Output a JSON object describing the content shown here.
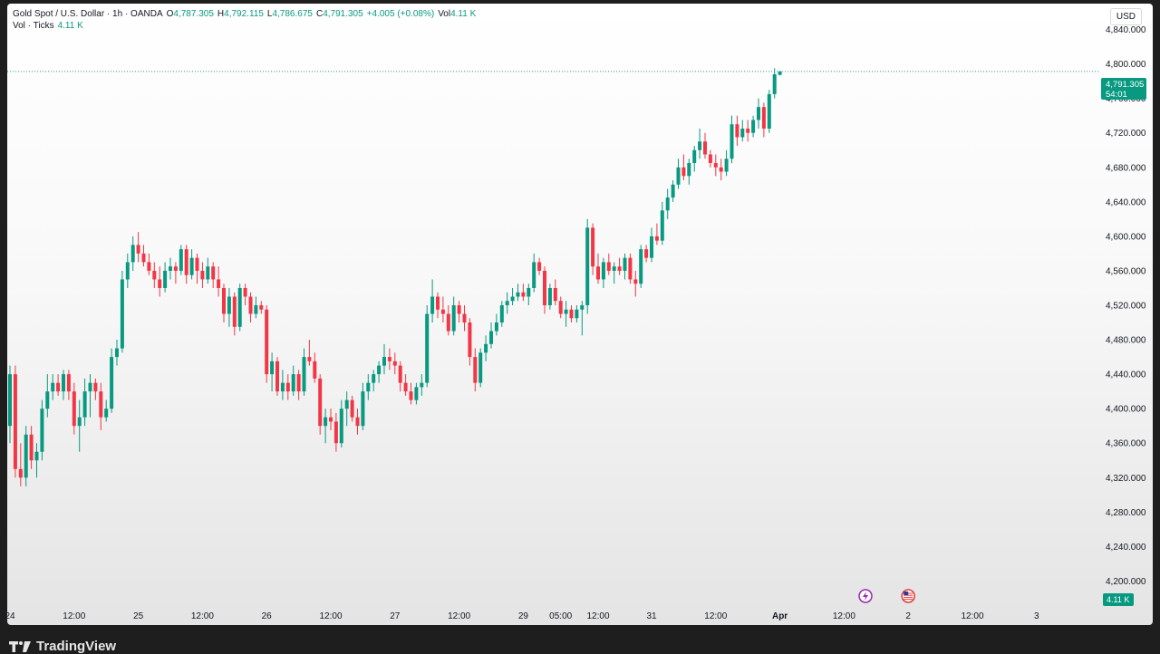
{
  "legend": {
    "symbol": "Gold Spot / U.S. Dollar · 1h · OANDA",
    "open_label": "O",
    "open": "4,787.305",
    "high_label": "H",
    "high": "4,792.115",
    "low_label": "L",
    "low": "4,786.675",
    "close_label": "C",
    "close": "4,791.305",
    "change": "+4.005 (+0.08%)",
    "vol_label": "Vol",
    "vol": "4.11 K",
    "indicator": "Vol · Ticks",
    "indicator_value": "4.11 K"
  },
  "currency": "USD",
  "price_badge": {
    "price": "4,791.305",
    "countdown": "54:01"
  },
  "volume_badge": "4.11 K",
  "brand": "TradingView",
  "colors": {
    "up": "#089981",
    "down": "#f23645",
    "badge": "#089981",
    "line": "#2a9d8f"
  },
  "chart_data": {
    "type": "candlestick",
    "last_price": 4791.305,
    "y_axis": {
      "min": 4170,
      "max": 4870,
      "ticks": [
        4200,
        4240,
        4280,
        4320,
        4360,
        4400,
        4440,
        4480,
        4520,
        4560,
        4600,
        4640,
        4680,
        4720,
        4760,
        4800,
        4840
      ],
      "tick_labels": [
        "4,200.000",
        "4,240.000",
        "4,280.000",
        "4,320.000",
        "4,360.000",
        "4,400.000",
        "4,440.000",
        "4,480.000",
        "4,520.000",
        "4,560.000",
        "4,600.000",
        "4,640.000",
        "4,680.000",
        "4,720.000",
        "4,760.000",
        "4,800.000",
        "4,840.000"
      ]
    },
    "x_axis": {
      "labels": [
        "24",
        "12:00",
        "25",
        "12:00",
        "26",
        "12:00",
        "27",
        "12:00",
        "29",
        "05:00",
        "12:00",
        "31",
        "12:00",
        "Apr",
        "12:00",
        "2",
        "12:00",
        "3"
      ],
      "bold": [
        false,
        false,
        false,
        false,
        false,
        false,
        false,
        false,
        false,
        false,
        false,
        false,
        false,
        true,
        false,
        false,
        false,
        false
      ],
      "bar_index": [
        0,
        12,
        24,
        36,
        48,
        60,
        72,
        84,
        96,
        103,
        110,
        120,
        132,
        144,
        156,
        168,
        180,
        192
      ]
    },
    "candles": [
      {
        "o": 4380,
        "h": 4450,
        "l": 4360,
        "c": 4440
      },
      {
        "o": 4440,
        "h": 4450,
        "l": 4320,
        "c": 4330
      },
      {
        "o": 4330,
        "h": 4360,
        "l": 4310,
        "c": 4320
      },
      {
        "o": 4320,
        "h": 4380,
        "l": 4310,
        "c": 4370
      },
      {
        "o": 4370,
        "h": 4380,
        "l": 4330,
        "c": 4340
      },
      {
        "o": 4340,
        "h": 4360,
        "l": 4320,
        "c": 4350
      },
      {
        "o": 4350,
        "h": 4410,
        "l": 4340,
        "c": 4400
      },
      {
        "o": 4400,
        "h": 4440,
        "l": 4390,
        "c": 4420
      },
      {
        "o": 4420,
        "h": 4440,
        "l": 4410,
        "c": 4430
      },
      {
        "o": 4430,
        "h": 4440,
        "l": 4415,
        "c": 4420
      },
      {
        "o": 4420,
        "h": 4445,
        "l": 4410,
        "c": 4440
      },
      {
        "o": 4440,
        "h": 4445,
        "l": 4410,
        "c": 4420
      },
      {
        "o": 4420,
        "h": 4430,
        "l": 4370,
        "c": 4380
      },
      {
        "o": 4380,
        "h": 4410,
        "l": 4350,
        "c": 4390
      },
      {
        "o": 4390,
        "h": 4435,
        "l": 4380,
        "c": 4420
      },
      {
        "o": 4420,
        "h": 4440,
        "l": 4390,
        "c": 4430
      },
      {
        "o": 4430,
        "h": 4435,
        "l": 4410,
        "c": 4420
      },
      {
        "o": 4420,
        "h": 4430,
        "l": 4375,
        "c": 4390
      },
      {
        "o": 4390,
        "h": 4410,
        "l": 4385,
        "c": 4400
      },
      {
        "o": 4400,
        "h": 4470,
        "l": 4395,
        "c": 4460
      },
      {
        "o": 4460,
        "h": 4480,
        "l": 4450,
        "c": 4470
      },
      {
        "o": 4470,
        "h": 4560,
        "l": 4465,
        "c": 4550
      },
      {
        "o": 4550,
        "h": 4580,
        "l": 4540,
        "c": 4570
      },
      {
        "o": 4570,
        "h": 4600,
        "l": 4560,
        "c": 4590
      },
      {
        "o": 4590,
        "h": 4605,
        "l": 4570,
        "c": 4580
      },
      {
        "o": 4580,
        "h": 4590,
        "l": 4565,
        "c": 4570
      },
      {
        "o": 4570,
        "h": 4580,
        "l": 4555,
        "c": 4560
      },
      {
        "o": 4560,
        "h": 4570,
        "l": 4540,
        "c": 4550
      },
      {
        "o": 4550,
        "h": 4565,
        "l": 4530,
        "c": 4540
      },
      {
        "o": 4540,
        "h": 4570,
        "l": 4535,
        "c": 4560
      },
      {
        "o": 4560,
        "h": 4575,
        "l": 4550,
        "c": 4565
      },
      {
        "o": 4565,
        "h": 4570,
        "l": 4545,
        "c": 4560
      },
      {
        "o": 4560,
        "h": 4590,
        "l": 4555,
        "c": 4585
      },
      {
        "o": 4585,
        "h": 4590,
        "l": 4545,
        "c": 4555
      },
      {
        "o": 4555,
        "h": 4585,
        "l": 4550,
        "c": 4575
      },
      {
        "o": 4575,
        "h": 4580,
        "l": 4545,
        "c": 4560
      },
      {
        "o": 4560,
        "h": 4570,
        "l": 4540,
        "c": 4550
      },
      {
        "o": 4550,
        "h": 4575,
        "l": 4545,
        "c": 4565
      },
      {
        "o": 4565,
        "h": 4570,
        "l": 4540,
        "c": 4550
      },
      {
        "o": 4550,
        "h": 4565,
        "l": 4530,
        "c": 4540
      },
      {
        "o": 4540,
        "h": 4545,
        "l": 4500,
        "c": 4510
      },
      {
        "o": 4510,
        "h": 4540,
        "l": 4495,
        "c": 4530
      },
      {
        "o": 4530,
        "h": 4535,
        "l": 4485,
        "c": 4495
      },
      {
        "o": 4495,
        "h": 4545,
        "l": 4490,
        "c": 4540
      },
      {
        "o": 4540,
        "h": 4545,
        "l": 4520,
        "c": 4530
      },
      {
        "o": 4530,
        "h": 4535,
        "l": 4500,
        "c": 4510
      },
      {
        "o": 4510,
        "h": 4530,
        "l": 4505,
        "c": 4520
      },
      {
        "o": 4520,
        "h": 4525,
        "l": 4510,
        "c": 4515
      },
      {
        "o": 4515,
        "h": 4520,
        "l": 4430,
        "c": 4440
      },
      {
        "o": 4440,
        "h": 4465,
        "l": 4420,
        "c": 4455
      },
      {
        "o": 4455,
        "h": 4460,
        "l": 4415,
        "c": 4420
      },
      {
        "o": 4420,
        "h": 4445,
        "l": 4410,
        "c": 4430
      },
      {
        "o": 4430,
        "h": 4440,
        "l": 4410,
        "c": 4420
      },
      {
        "o": 4420,
        "h": 4450,
        "l": 4415,
        "c": 4440
      },
      {
        "o": 4440,
        "h": 4445,
        "l": 4410,
        "c": 4420
      },
      {
        "o": 4420,
        "h": 4470,
        "l": 4415,
        "c": 4460
      },
      {
        "o": 4460,
        "h": 4480,
        "l": 4450,
        "c": 4455
      },
      {
        "o": 4455,
        "h": 4465,
        "l": 4430,
        "c": 4435
      },
      {
        "o": 4435,
        "h": 4440,
        "l": 4370,
        "c": 4380
      },
      {
        "o": 4380,
        "h": 4400,
        "l": 4360,
        "c": 4390
      },
      {
        "o": 4390,
        "h": 4400,
        "l": 4375,
        "c": 4385
      },
      {
        "o": 4385,
        "h": 4395,
        "l": 4350,
        "c": 4360
      },
      {
        "o": 4360,
        "h": 4410,
        "l": 4355,
        "c": 4400
      },
      {
        "o": 4400,
        "h": 4420,
        "l": 4380,
        "c": 4410
      },
      {
        "o": 4410,
        "h": 4415,
        "l": 4385,
        "c": 4390
      },
      {
        "o": 4390,
        "h": 4400,
        "l": 4370,
        "c": 4380
      },
      {
        "o": 4380,
        "h": 4430,
        "l": 4375,
        "c": 4420
      },
      {
        "o": 4420,
        "h": 4440,
        "l": 4410,
        "c": 4430
      },
      {
        "o": 4430,
        "h": 4445,
        "l": 4420,
        "c": 4440
      },
      {
        "o": 4440,
        "h": 4455,
        "l": 4430,
        "c": 4450
      },
      {
        "o": 4450,
        "h": 4475,
        "l": 4440,
        "c": 4460
      },
      {
        "o": 4460,
        "h": 4470,
        "l": 4445,
        "c": 4455
      },
      {
        "o": 4455,
        "h": 4465,
        "l": 4440,
        "c": 4450
      },
      {
        "o": 4450,
        "h": 4455,
        "l": 4420,
        "c": 4430
      },
      {
        "o": 4430,
        "h": 4440,
        "l": 4415,
        "c": 4420
      },
      {
        "o": 4420,
        "h": 4430,
        "l": 4405,
        "c": 4410
      },
      {
        "o": 4410,
        "h": 4430,
        "l": 4405,
        "c": 4425
      },
      {
        "o": 4425,
        "h": 4440,
        "l": 4415,
        "c": 4430
      },
      {
        "o": 4430,
        "h": 4520,
        "l": 4425,
        "c": 4510
      },
      {
        "o": 4510,
        "h": 4550,
        "l": 4500,
        "c": 4530
      },
      {
        "o": 4530,
        "h": 4535,
        "l": 4505,
        "c": 4515
      },
      {
        "o": 4515,
        "h": 4530,
        "l": 4500,
        "c": 4510
      },
      {
        "o": 4510,
        "h": 4520,
        "l": 4485,
        "c": 4490
      },
      {
        "o": 4490,
        "h": 4530,
        "l": 4485,
        "c": 4520
      },
      {
        "o": 4520,
        "h": 4525,
        "l": 4500,
        "c": 4510
      },
      {
        "o": 4510,
        "h": 4520,
        "l": 4490,
        "c": 4500
      },
      {
        "o": 4500,
        "h": 4505,
        "l": 4450,
        "c": 4460
      },
      {
        "o": 4460,
        "h": 4470,
        "l": 4420,
        "c": 4430
      },
      {
        "o": 4430,
        "h": 4470,
        "l": 4425,
        "c": 4465
      },
      {
        "o": 4465,
        "h": 4485,
        "l": 4455,
        "c": 4475
      },
      {
        "o": 4475,
        "h": 4500,
        "l": 4470,
        "c": 4490
      },
      {
        "o": 4490,
        "h": 4510,
        "l": 4485,
        "c": 4500
      },
      {
        "o": 4500,
        "h": 4525,
        "l": 4495,
        "c": 4520
      },
      {
        "o": 4520,
        "h": 4535,
        "l": 4510,
        "c": 4525
      },
      {
        "o": 4525,
        "h": 4540,
        "l": 4520,
        "c": 4530
      },
      {
        "o": 4530,
        "h": 4545,
        "l": 4525,
        "c": 4535
      },
      {
        "o": 4535,
        "h": 4545,
        "l": 4525,
        "c": 4530
      },
      {
        "o": 4530,
        "h": 4545,
        "l": 4520,
        "c": 4540
      },
      {
        "o": 4540,
        "h": 4580,
        "l": 4535,
        "c": 4570
      },
      {
        "o": 4570,
        "h": 4575,
        "l": 4555,
        "c": 4560
      },
      {
        "o": 4560,
        "h": 4565,
        "l": 4510,
        "c": 4520
      },
      {
        "o": 4520,
        "h": 4545,
        "l": 4515,
        "c": 4540
      },
      {
        "o": 4540,
        "h": 4550,
        "l": 4520,
        "c": 4525
      },
      {
        "o": 4525,
        "h": 4530,
        "l": 4505,
        "c": 4510
      },
      {
        "o": 4510,
        "h": 4525,
        "l": 4495,
        "c": 4515
      },
      {
        "o": 4515,
        "h": 4520,
        "l": 4500,
        "c": 4505
      },
      {
        "o": 4505,
        "h": 4520,
        "l": 4500,
        "c": 4515
      },
      {
        "o": 4515,
        "h": 4525,
        "l": 4485,
        "c": 4520
      },
      {
        "o": 4520,
        "h": 4620,
        "l": 4510,
        "c": 4610
      },
      {
        "o": 4610,
        "h": 4615,
        "l": 4555,
        "c": 4565
      },
      {
        "o": 4565,
        "h": 4580,
        "l": 4545,
        "c": 4550
      },
      {
        "o": 4550,
        "h": 4575,
        "l": 4540,
        "c": 4570
      },
      {
        "o": 4570,
        "h": 4580,
        "l": 4555,
        "c": 4560
      },
      {
        "o": 4560,
        "h": 4570,
        "l": 4545,
        "c": 4565
      },
      {
        "o": 4565,
        "h": 4575,
        "l": 4555,
        "c": 4560
      },
      {
        "o": 4560,
        "h": 4580,
        "l": 4550,
        "c": 4575
      },
      {
        "o": 4575,
        "h": 4580,
        "l": 4545,
        "c": 4550
      },
      {
        "o": 4550,
        "h": 4560,
        "l": 4530,
        "c": 4545
      },
      {
        "o": 4545,
        "h": 4590,
        "l": 4540,
        "c": 4585
      },
      {
        "o": 4585,
        "h": 4590,
        "l": 4570,
        "c": 4575
      },
      {
        "o": 4575,
        "h": 4610,
        "l": 4570,
        "c": 4600
      },
      {
        "o": 4600,
        "h": 4615,
        "l": 4590,
        "c": 4595
      },
      {
        "o": 4595,
        "h": 4640,
        "l": 4590,
        "c": 4630
      },
      {
        "o": 4630,
        "h": 4655,
        "l": 4620,
        "c": 4645
      },
      {
        "o": 4645,
        "h": 4665,
        "l": 4640,
        "c": 4660
      },
      {
        "o": 4660,
        "h": 4690,
        "l": 4655,
        "c": 4680
      },
      {
        "o": 4680,
        "h": 4695,
        "l": 4665,
        "c": 4670
      },
      {
        "o": 4670,
        "h": 4690,
        "l": 4660,
        "c": 4685
      },
      {
        "o": 4685,
        "h": 4705,
        "l": 4675,
        "c": 4700
      },
      {
        "o": 4700,
        "h": 4725,
        "l": 4690,
        "c": 4710
      },
      {
        "o": 4710,
        "h": 4720,
        "l": 4690,
        "c": 4695
      },
      {
        "o": 4695,
        "h": 4700,
        "l": 4680,
        "c": 4685
      },
      {
        "o": 4685,
        "h": 4695,
        "l": 4670,
        "c": 4680
      },
      {
        "o": 4680,
        "h": 4690,
        "l": 4665,
        "c": 4675
      },
      {
        "o": 4675,
        "h": 4700,
        "l": 4670,
        "c": 4690
      },
      {
        "o": 4690,
        "h": 4740,
        "l": 4685,
        "c": 4730
      },
      {
        "o": 4730,
        "h": 4740,
        "l": 4705,
        "c": 4715
      },
      {
        "o": 4715,
        "h": 4735,
        "l": 4710,
        "c": 4725
      },
      {
        "o": 4725,
        "h": 4735,
        "l": 4710,
        "c": 4720
      },
      {
        "o": 4720,
        "h": 4740,
        "l": 4715,
        "c": 4735
      },
      {
        "o": 4735,
        "h": 4760,
        "l": 4725,
        "c": 4750
      },
      {
        "o": 4750,
        "h": 4755,
        "l": 4715,
        "c": 4725
      },
      {
        "o": 4725,
        "h": 4770,
        "l": 4720,
        "c": 4765
      },
      {
        "o": 4765,
        "h": 4795,
        "l": 4760,
        "c": 4788
      },
      {
        "o": 4787.305,
        "h": 4792.115,
        "l": 4786.675,
        "c": 4791.305
      }
    ],
    "events": [
      {
        "icon": "lightning-icon",
        "bar_index": 160
      },
      {
        "icon": "us-flag-icon",
        "bar_index": 168
      }
    ]
  }
}
